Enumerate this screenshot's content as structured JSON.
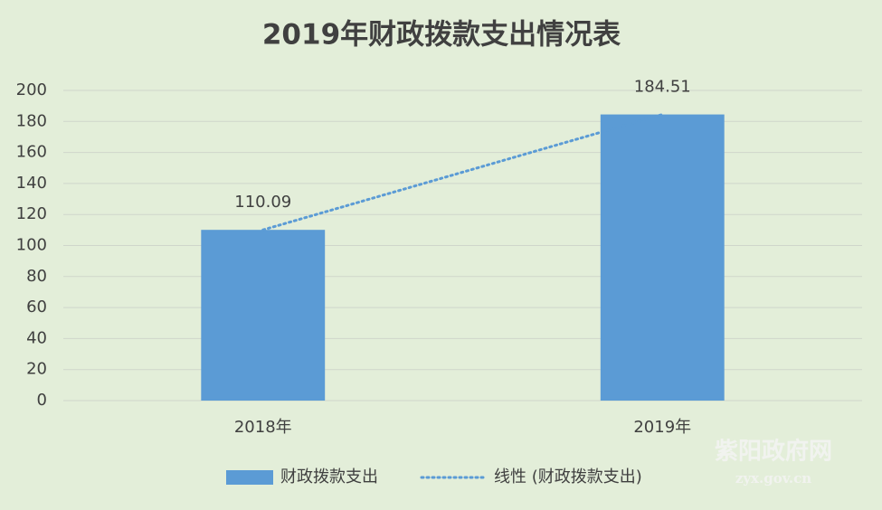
{
  "chart_data": {
    "type": "bar",
    "title": "2019年财政拨款支出情况表",
    "categories": [
      "2018年",
      "2019年"
    ],
    "series": [
      {
        "name": "财政拨款支出",
        "color": "#5b9bd5",
        "values": [
          110.09,
          184.51
        ]
      }
    ],
    "trendline": {
      "name": "线性 (财政拨款支出)",
      "color": "#5b9bd5",
      "kind": "linear",
      "style": "dotted"
    },
    "ylim": [
      0,
      200
    ],
    "yticks": [
      0,
      20,
      40,
      60,
      80,
      100,
      120,
      140,
      160,
      180,
      200
    ],
    "grid": true,
    "data_labels": true,
    "legend": "bottom"
  },
  "watermark": {
    "title": "紫阳政府网",
    "url": "zyx.gov.cn"
  }
}
